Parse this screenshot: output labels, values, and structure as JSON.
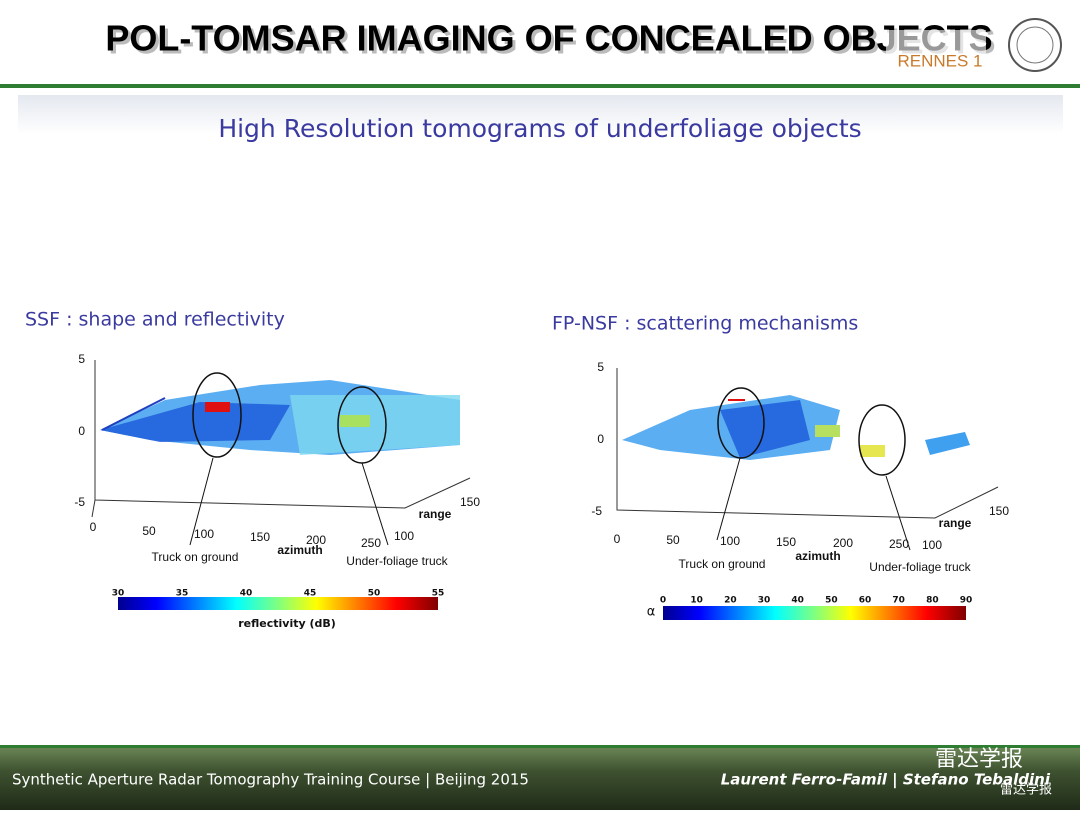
{
  "header": {
    "title": "POL-TOMSAR IMAGING OF CONCEALED OBJECTS",
    "logo_text": "RENNES 1"
  },
  "slide": {
    "subtitle": "High Resolution tomograms of underfoliage objects"
  },
  "panels": [
    {
      "title": "SSF : shape and reflectivity",
      "z_ticks": [
        5,
        0,
        -5
      ],
      "azimuth_ticks": [
        0,
        50,
        100,
        150,
        200,
        250
      ],
      "range_ticks": [
        100,
        150
      ],
      "azimuth_label": "azimuth",
      "range_label": "range",
      "annotations": [
        "Truck on ground",
        "Under-foliage truck"
      ],
      "colorbar": {
        "ticks": [
          30,
          35,
          40,
          45,
          50,
          55
        ],
        "label": "reflectivity (dB)"
      }
    },
    {
      "title": "FP-NSF : scattering mechanisms",
      "z_ticks": [
        5,
        0,
        -5
      ],
      "azimuth_ticks": [
        0,
        50,
        100,
        150,
        200,
        250
      ],
      "range_ticks": [
        100,
        150
      ],
      "azimuth_label": "azimuth",
      "range_label": "range",
      "annotations": [
        "Truck on ground",
        "Under-foliage truck"
      ],
      "colorbar": {
        "ticks": [
          0,
          10,
          20,
          30,
          40,
          50,
          60,
          70,
          80,
          90
        ],
        "label": "α"
      }
    }
  ],
  "footer": {
    "course": "Synthetic Aperture Radar Tomography Training Course | Beijing 2015",
    "authors": "Laurent Ferro-Famil | Stefano Tebaldini",
    "watermark": "雷达学报",
    "watermark_small": "雷达学报"
  }
}
